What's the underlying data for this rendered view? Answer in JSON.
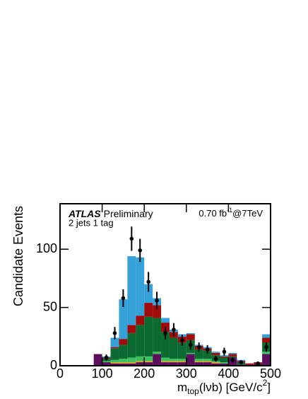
{
  "chart_data": {
    "type": "histogram",
    "ylabel": "Candidate Events",
    "xlabel": [
      "m",
      "top",
      "(lνb) [GeV/c",
      "2",
      "]"
    ],
    "annotations": {
      "experiment": "ATLAS",
      "status": "Preliminary",
      "selection": "2 jets 1 tag",
      "lumi": [
        "0.70 fb",
        "-1",
        "@7TeV"
      ]
    },
    "xlim": [
      0,
      500
    ],
    "xticks": [
      0,
      100,
      200,
      300,
      400,
      500
    ],
    "ylim": [
      0,
      139
    ],
    "yticks": [
      0,
      50,
      100
    ],
    "bins": [
      80,
      100,
      120,
      140,
      160,
      180,
      200,
      220,
      240,
      260,
      280,
      300,
      320,
      340,
      360,
      380,
      400,
      420,
      440,
      460,
      480,
      500
    ],
    "series": [
      {
        "color": "#5c0f5c",
        "values": [
          10,
          3,
          2,
          2,
          2,
          3,
          3,
          10,
          3,
          3,
          3,
          10,
          3,
          3,
          2,
          2,
          7,
          1,
          1,
          2,
          10
        ]
      },
      {
        "color": "#e8a020",
        "values": [
          0,
          0,
          1,
          1,
          1,
          1,
          1,
          0,
          1,
          1,
          1,
          0,
          1,
          1,
          1,
          0,
          0,
          0,
          0,
          0,
          0
        ]
      },
      {
        "color": "#3cc060",
        "values": [
          0,
          1,
          2,
          3,
          4,
          4,
          4,
          2,
          3,
          2,
          2,
          1,
          2,
          2,
          1,
          1,
          0,
          0,
          0,
          0,
          2
        ]
      },
      {
        "color": "#0a6a30",
        "values": [
          0,
          2,
          10,
          12,
          21,
          27,
          34,
          29,
          22,
          18,
          14,
          11,
          8,
          7,
          5,
          4,
          1,
          2,
          0,
          0,
          8
        ]
      },
      {
        "color": "#a00c0c",
        "values": [
          0,
          1,
          1,
          5,
          7,
          8,
          12,
          11,
          8,
          5,
          5,
          5,
          3,
          2,
          2,
          1,
          2,
          1,
          1,
          1,
          4
        ]
      },
      {
        "color": "#36a0d8",
        "values": [
          0,
          1,
          8,
          34,
          59,
          50,
          16,
          6,
          4,
          2,
          2,
          1,
          1,
          1,
          1,
          1,
          1,
          1,
          0,
          0,
          3
        ]
      }
    ],
    "data": {
      "color": "#000000",
      "x": [
        110,
        130,
        150,
        170,
        190,
        210,
        230,
        250,
        270,
        290,
        310,
        330,
        350,
        370,
        390,
        410,
        430,
        470,
        490
      ],
      "values": [
        7,
        28,
        58,
        109,
        99,
        72,
        56,
        28,
        31,
        22,
        18,
        16,
        14,
        6,
        12,
        5,
        3,
        2,
        16
      ],
      "errors": [
        2.6,
        5.3,
        7.6,
        10.4,
        9.9,
        8.5,
        7.5,
        5.3,
        5.6,
        4.7,
        4.2,
        4,
        3.7,
        2.4,
        3.5,
        2.2,
        1.7,
        1.4,
        4
      ]
    }
  }
}
